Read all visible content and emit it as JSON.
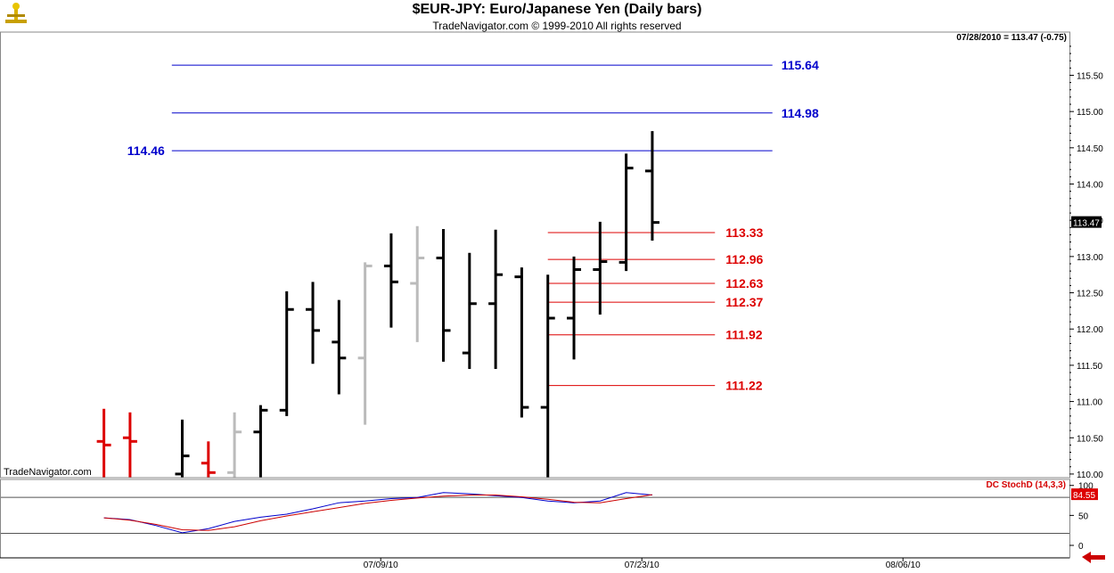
{
  "header": {
    "title": "$EUR-JPY:  Euro/Japanese Yen  (Daily bars)",
    "copyright": "TradeNavigator.com © 1999-2010 All rights reserved",
    "last_quote": "07/28/2010 = 113.47 (-0.75)",
    "watermark": "TradeNavigator.com"
  },
  "colors": {
    "up": "#000000",
    "down": "#dd0000",
    "neutral": "#bbbbbb",
    "resistance": "#0000cc",
    "support": "#dd0000",
    "stoch_k": "#0000cc",
    "stoch_d": "#cc0000",
    "axis": "#000000"
  },
  "chart_data": [
    {
      "type": "ohlc",
      "title": "$EUR-JPY:  Euro/Japanese Yen  (Daily bars)",
      "x_ticks": [
        "07/09/10",
        "07/23/10",
        "08/06/10"
      ],
      "x_tick_positions": [
        4.0,
        14.0,
        24.0
      ],
      "ylim": [
        109.95,
        115.85
      ],
      "y_ticks": [
        "110.00",
        "110.50",
        "111.00",
        "111.50",
        "112.00",
        "112.50",
        "113.00",
        "113.50",
        "114.00",
        "114.50",
        "115.00",
        "115.50"
      ],
      "last_price_label": "113.47",
      "bars": [
        {
          "i": -6.6,
          "o": 110.45,
          "h": 110.9,
          "l": 109.95,
          "c": 110.4,
          "dir": "down"
        },
        {
          "i": -5.6,
          "o": 110.5,
          "h": 110.85,
          "l": 109.95,
          "c": 110.45,
          "dir": "down"
        },
        {
          "i": -3.6,
          "o": 110.0,
          "h": 110.75,
          "l": 109.95,
          "c": 110.25,
          "dir": "up"
        },
        {
          "i": -2.6,
          "o": 110.15,
          "h": 110.45,
          "l": 109.95,
          "c": 110.02,
          "dir": "down"
        },
        {
          "i": -1.6,
          "o": 110.02,
          "h": 110.85,
          "l": 109.95,
          "c": 110.58,
          "dir": "neutral"
        },
        {
          "i": -0.6,
          "o": 110.58,
          "h": 110.95,
          "l": 109.95,
          "c": 110.88,
          "dir": "up"
        },
        {
          "i": 0.4,
          "o": 110.88,
          "h": 112.52,
          "l": 110.8,
          "c": 112.27,
          "dir": "up"
        },
        {
          "i": 1.4,
          "o": 112.27,
          "h": 112.65,
          "l": 111.52,
          "c": 111.98,
          "dir": "up"
        },
        {
          "i": 2.4,
          "o": 111.82,
          "h": 112.4,
          "l": 111.1,
          "c": 111.6,
          "dir": "up"
        },
        {
          "i": 3.4,
          "o": 111.6,
          "h": 112.92,
          "l": 110.68,
          "c": 112.87,
          "dir": "neutral"
        },
        {
          "i": 4.4,
          "o": 112.87,
          "h": 113.32,
          "l": 112.02,
          "c": 112.65,
          "dir": "up"
        },
        {
          "i": 5.4,
          "o": 112.63,
          "h": 113.42,
          "l": 111.82,
          "c": 112.98,
          "dir": "neutral"
        },
        {
          "i": 6.4,
          "o": 112.98,
          "h": 113.38,
          "l": 111.55,
          "c": 111.98,
          "dir": "up"
        },
        {
          "i": 7.4,
          "o": 111.67,
          "h": 113.05,
          "l": 111.45,
          "c": 112.35,
          "dir": "up"
        },
        {
          "i": 8.4,
          "o": 112.35,
          "h": 113.37,
          "l": 111.45,
          "c": 112.75,
          "dir": "up"
        },
        {
          "i": 9.4,
          "o": 112.72,
          "h": 112.85,
          "l": 110.78,
          "c": 110.92,
          "dir": "up"
        },
        {
          "i": 10.4,
          "o": 110.92,
          "h": 112.75,
          "l": 109.95,
          "c": 112.15,
          "dir": "up"
        },
        {
          "i": 11.4,
          "o": 112.15,
          "h": 113.0,
          "l": 111.58,
          "c": 112.82,
          "dir": "up"
        },
        {
          "i": 12.4,
          "o": 112.82,
          "h": 113.48,
          "l": 112.2,
          "c": 112.93,
          "dir": "up"
        },
        {
          "i": 13.4,
          "o": 112.92,
          "h": 114.42,
          "l": 112.8,
          "c": 114.22,
          "dir": "up"
        },
        {
          "i": 14.4,
          "o": 114.18,
          "h": 114.73,
          "l": 113.22,
          "c": 113.47,
          "dir": "up"
        }
      ],
      "resistance_levels": [
        {
          "value": 115.64,
          "label": "115.64",
          "i_start": -4.0,
          "i_end": 19.0,
          "label_side": "right"
        },
        {
          "value": 114.98,
          "label": "114.98",
          "i_start": -4.0,
          "i_end": 19.0,
          "label_side": "right"
        },
        {
          "value": 114.46,
          "label": "114.46",
          "i_start": -4.0,
          "i_end": 19.0,
          "label_side": "left"
        }
      ],
      "support_levels": [
        {
          "value": 113.33,
          "label": "113.33",
          "i_start": 10.4,
          "i_end": 16.8
        },
        {
          "value": 112.96,
          "label": "112.96",
          "i_start": 10.4,
          "i_end": 16.8
        },
        {
          "value": 112.63,
          "label": "112.63",
          "i_start": 10.4,
          "i_end": 16.8
        },
        {
          "value": 112.37,
          "label": "112.37",
          "i_start": 10.4,
          "i_end": 16.8
        },
        {
          "value": 111.92,
          "label": "111.92",
          "i_start": 10.4,
          "i_end": 16.8
        },
        {
          "value": 111.22,
          "label": "111.22",
          "i_start": 10.4,
          "i_end": 16.8
        }
      ]
    },
    {
      "type": "line",
      "title": "DC StochD (14,3,3)",
      "ylim": [
        0,
        110
      ],
      "y_ticks": [
        "100",
        "50",
        "0"
      ],
      "hlines": [
        80,
        20
      ],
      "last_value_label": "84.55",
      "x": [
        -6.6,
        -5.6,
        -4.6,
        -3.6,
        -2.6,
        -1.6,
        -0.6,
        0.4,
        1.4,
        2.4,
        3.4,
        4.4,
        5.4,
        6.4,
        7.4,
        8.4,
        9.4,
        10.4,
        11.4,
        12.4,
        13.4,
        14.4
      ],
      "series": [
        {
          "id": "k",
          "values": [
            46,
            43,
            33,
            21,
            28,
            40,
            47,
            52,
            61,
            71,
            74,
            78,
            80,
            88,
            86,
            83,
            80,
            74,
            71,
            74,
            88,
            84
          ]
        },
        {
          "id": "d",
          "values": [
            46,
            42,
            35,
            26,
            25,
            31,
            41,
            49,
            56,
            63,
            70,
            75,
            79,
            82,
            84,
            84,
            81,
            77,
            72,
            71,
            78,
            84.55
          ]
        }
      ]
    }
  ]
}
